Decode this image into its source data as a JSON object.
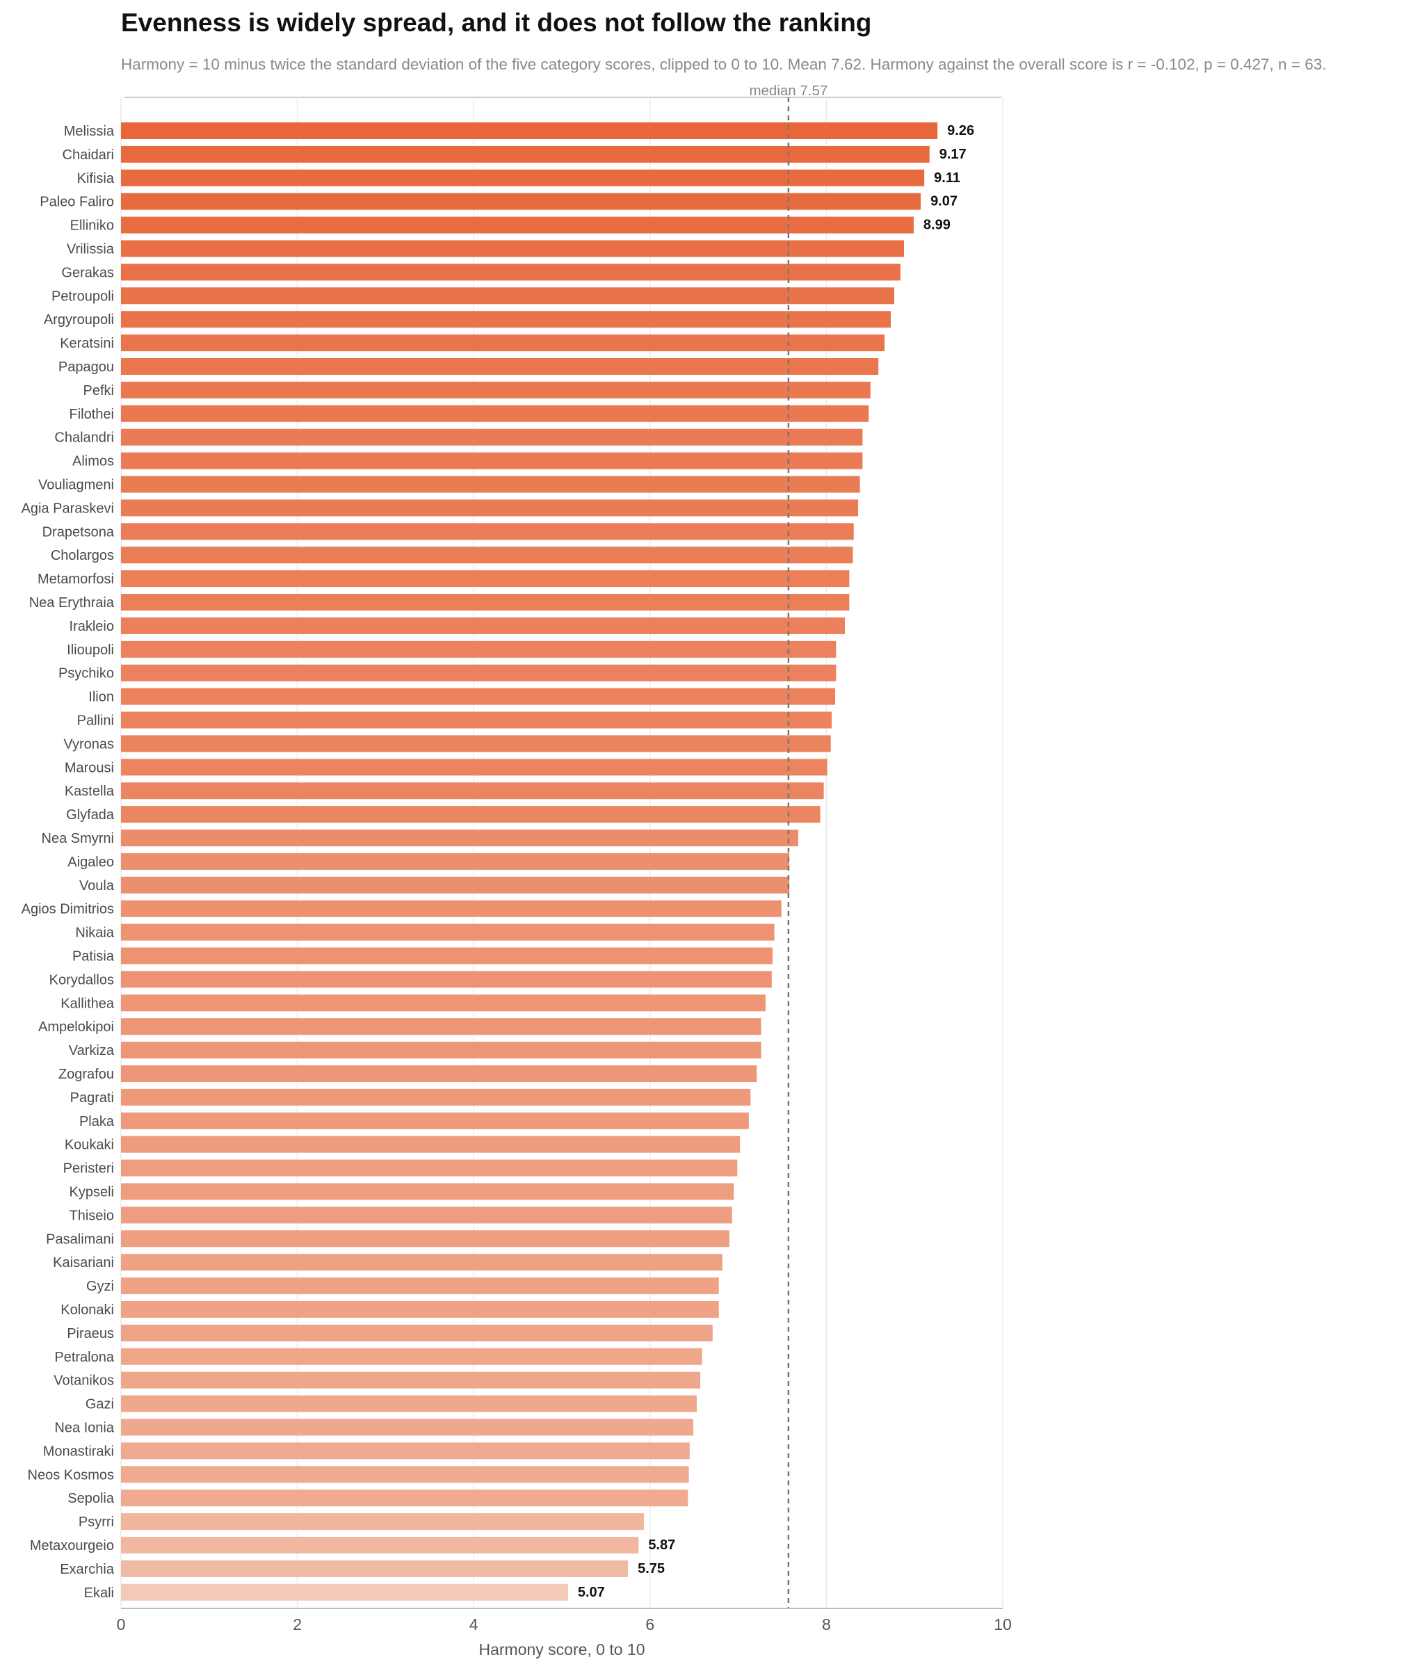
{
  "chart_data": {
    "type": "bar",
    "orientation": "horizontal",
    "title": "Evenness is widely spread, and it does not follow the ranking",
    "subtitle": "Harmony = 10 minus twice the standard deviation of the five category scores, clipped to 0 to 10. Mean 7.62. Harmony against the overall score is r = -0.102, p = 0.427, n = 63.",
    "xlabel": "Harmony score, 0 to 10",
    "ylabel": "",
    "xlim": [
      0,
      10
    ],
    "xticks": [
      0,
      2,
      4,
      6,
      8,
      10
    ],
    "grid": "vertical",
    "median": {
      "value": 7.57,
      "label": "median 7.57"
    },
    "colors": {
      "high": "#e8673a",
      "low": "#f3cab8",
      "median_line": "#777777"
    },
    "categories": [
      "Melissia",
      "Chaidari",
      "Kifisia",
      "Paleo Faliro",
      "Elliniko",
      "Vrilissia",
      "Gerakas",
      "Petroupoli",
      "Argyroupoli",
      "Keratsini",
      "Papagou",
      "Pefki",
      "Filothei",
      "Chalandri",
      "Alimos",
      "Vouliagmeni",
      "Agia Paraskevi",
      "Drapetsona",
      "Cholargos",
      "Metamorfosi",
      "Nea Erythraia",
      "Irakleio",
      "Ilioupoli",
      "Psychiko",
      "Ilion",
      "Pallini",
      "Vyronas",
      "Marousi",
      "Kastella",
      "Glyfada",
      "Nea Smyrni",
      "Aigaleo",
      "Voula",
      "Agios Dimitrios",
      "Nikaia",
      "Patisia",
      "Korydallos",
      "Kallithea",
      "Ampelokipoi",
      "Varkiza",
      "Zografou",
      "Pagrati",
      "Plaka",
      "Koukaki",
      "Peristeri",
      "Kypseli",
      "Thiseio",
      "Pasalimani",
      "Kaisariani",
      "Gyzi",
      "Kolonaki",
      "Piraeus",
      "Petralona",
      "Votanikos",
      "Gazi",
      "Nea Ionia",
      "Monastiraki",
      "Neos Kosmos",
      "Sepolia",
      "Psyrri",
      "Metaxourgeio",
      "Exarchia",
      "Ekali"
    ],
    "values": [
      9.26,
      9.17,
      9.11,
      9.07,
      8.99,
      8.88,
      8.84,
      8.77,
      8.73,
      8.66,
      8.59,
      8.5,
      8.48,
      8.41,
      8.41,
      8.38,
      8.36,
      8.31,
      8.3,
      8.26,
      8.26,
      8.21,
      8.11,
      8.11,
      8.1,
      8.06,
      8.05,
      8.01,
      7.97,
      7.93,
      7.68,
      7.58,
      7.58,
      7.49,
      7.41,
      7.39,
      7.38,
      7.31,
      7.26,
      7.26,
      7.21,
      7.14,
      7.12,
      7.02,
      6.99,
      6.95,
      6.93,
      6.9,
      6.82,
      6.78,
      6.78,
      6.71,
      6.59,
      6.57,
      6.53,
      6.49,
      6.45,
      6.44,
      6.43,
      5.93,
      5.87,
      5.75,
      5.07
    ],
    "value_labels": {
      "Melissia": "9.26",
      "Chaidari": "9.17",
      "Kifisia": "9.11",
      "Paleo Faliro": "9.07",
      "Elliniko": "8.99",
      "Metaxourgeio": "5.87",
      "Exarchia": "5.75",
      "Ekali": "5.07"
    }
  }
}
